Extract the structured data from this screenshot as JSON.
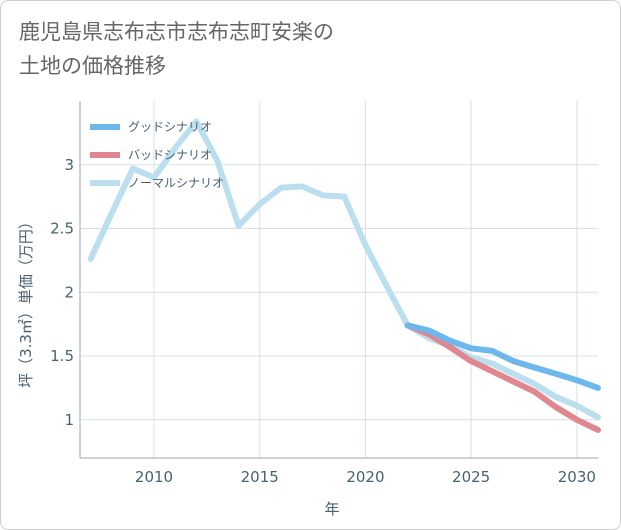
{
  "title_lines": [
    "鹿児島県志布志市志布志町安楽の",
    "土地の価格推移"
  ],
  "chart_data": {
    "type": "line",
    "title": "鹿児島県志布志市志布志町安楽の土地の価格推移",
    "xlabel": "年",
    "ylabel": "坪（3.3㎡）単価（万円）",
    "xlim": [
      2006.5,
      2031
    ],
    "ylim": [
      0.7,
      3.5
    ],
    "x_ticks": [
      2010,
      2015,
      2020,
      2025,
      2030
    ],
    "y_ticks": [
      1,
      1.5,
      2,
      2.5,
      3
    ],
    "grid": true,
    "legend_position": "top-left",
    "series": [
      {
        "name": "グッドシナリオ",
        "color": "#6cb8ec",
        "x": [
          2022,
          2023,
          2024,
          2025,
          2026,
          2027,
          2028,
          2029,
          2030,
          2031
        ],
        "y": [
          1.74,
          1.7,
          1.62,
          1.56,
          1.54,
          1.46,
          1.41,
          1.36,
          1.31,
          1.25
        ]
      },
      {
        "name": "バッドシナリオ",
        "color": "#e0868e",
        "x": [
          2022,
          2023,
          2024,
          2025,
          2026,
          2027,
          2028,
          2029,
          2030,
          2031
        ],
        "y": [
          1.74,
          1.67,
          1.57,
          1.46,
          1.38,
          1.3,
          1.22,
          1.1,
          1.0,
          0.92
        ]
      },
      {
        "name": "ノーマルシナリオ",
        "color": "#bcdff0",
        "x": [
          2007,
          2008,
          2009,
          2010,
          2011,
          2012,
          2013,
          2014,
          2015,
          2016,
          2017,
          2018,
          2019,
          2020,
          2021,
          2022,
          2023,
          2024,
          2025,
          2026,
          2027,
          2028,
          2029,
          2030,
          2031
        ],
        "y": [
          2.26,
          2.62,
          2.97,
          2.9,
          3.13,
          3.34,
          3.03,
          2.52,
          2.69,
          2.82,
          2.83,
          2.76,
          2.75,
          2.37,
          2.05,
          1.74,
          1.64,
          1.58,
          1.49,
          1.44,
          1.36,
          1.28,
          1.18,
          1.11,
          1.02
        ]
      }
    ]
  }
}
